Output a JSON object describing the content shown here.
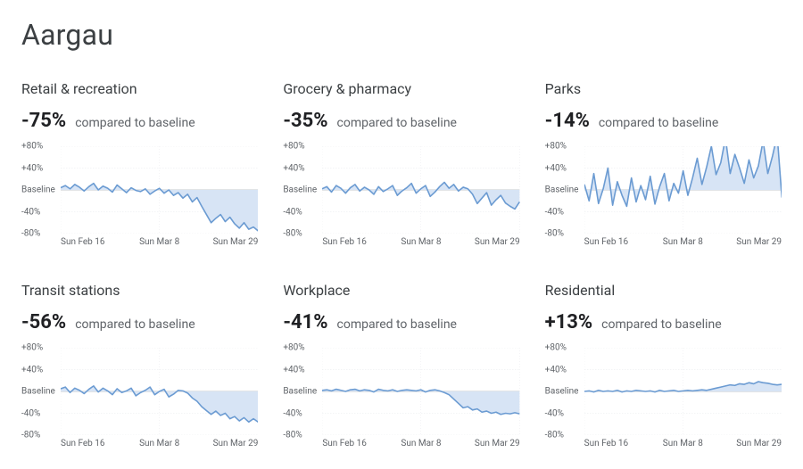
{
  "region": "Aargau",
  "baseline_label": "Baseline",
  "compared_label": "compared to baseline",
  "chart_style": {
    "line_color": "#6b9bd2",
    "fill_color": "#d7e4f5",
    "baseline_color": "#b0b6bc",
    "grid_color": "#e8eaed",
    "ylim": [
      -80,
      80
    ],
    "ytick_step": 40,
    "ytick_labels_top": [
      "+80%",
      "+40%"
    ],
    "ytick_labels_bottom": [
      "-40%",
      "-80%"
    ],
    "line_width": 1.6,
    "title_fontsize": 16,
    "value_fontsize": 22,
    "label_fontsize": 10,
    "background_color": "#ffffff"
  },
  "xaxis": {
    "range_days": 43,
    "ticks": [
      {
        "label": "Sun Feb 16",
        "t": 0
      },
      {
        "label": "Sun Mar 8",
        "t": 21
      },
      {
        "label": "Sun Mar 29",
        "t": 42
      }
    ]
  },
  "panels": [
    {
      "key": "retail",
      "title": "Retail & recreation",
      "value": "-75%",
      "series": [
        4,
        8,
        2,
        10,
        5,
        -2,
        6,
        12,
        0,
        7,
        3,
        -4,
        9,
        2,
        -5,
        4,
        -1,
        -3,
        2,
        -8,
        -2,
        3,
        -6,
        0,
        -10,
        -5,
        -15,
        -8,
        -22,
        -14,
        -30,
        -45,
        -60,
        -52,
        -45,
        -58,
        -50,
        -62,
        -70,
        -60,
        -72,
        -68,
        -75
      ]
    },
    {
      "key": "grocery",
      "title": "Grocery & pharmacy",
      "value": "-35%",
      "series": [
        2,
        6,
        -4,
        8,
        3,
        -6,
        4,
        10,
        -2,
        5,
        0,
        -8,
        6,
        -3,
        2,
        8,
        -10,
        -2,
        4,
        12,
        -6,
        2,
        8,
        -12,
        -4,
        6,
        14,
        3,
        10,
        -2,
        5,
        2,
        -8,
        -25,
        -15,
        -5,
        -28,
        -18,
        -10,
        -24,
        -30,
        -35,
        -22
      ]
    },
    {
      "key": "parks",
      "title": "Parks",
      "value": "-14%",
      "series": [
        10,
        -20,
        30,
        -25,
        2,
        40,
        -28,
        15,
        -10,
        -30,
        22,
        -22,
        8,
        -18,
        25,
        -26,
        6,
        30,
        -20,
        12,
        -6,
        35,
        -10,
        22,
        58,
        10,
        42,
        80,
        28,
        50,
        95,
        30,
        65,
        40,
        12,
        55,
        22,
        44,
        90,
        30,
        62,
        100,
        -14
      ]
    },
    {
      "key": "transit",
      "title": "Transit stations",
      "value": "-56%",
      "series": [
        5,
        8,
        -2,
        6,
        2,
        -4,
        4,
        10,
        -1,
        6,
        1,
        -6,
        5,
        -2,
        1,
        6,
        -8,
        -2,
        2,
        8,
        -6,
        0,
        4,
        -10,
        -5,
        2,
        1,
        -3,
        -12,
        -18,
        -28,
        -35,
        -42,
        -36,
        -44,
        -40,
        -50,
        -46,
        -54,
        -48,
        -56,
        -50,
        -56
      ]
    },
    {
      "key": "workplace",
      "title": "Workplace",
      "value": "-41%",
      "series": [
        2,
        3,
        1,
        4,
        2,
        0,
        3,
        4,
        1,
        3,
        2,
        -1,
        4,
        2,
        1,
        3,
        0,
        2,
        3,
        2,
        1,
        3,
        -1,
        2,
        3,
        1,
        -2,
        -6,
        -14,
        -22,
        -30,
        -28,
        -34,
        -32,
        -38,
        -36,
        -40,
        -38,
        -42,
        -40,
        -41,
        -39,
        -41
      ]
    },
    {
      "key": "residential",
      "title": "Residential",
      "value": "+13%",
      "series": [
        0,
        1,
        -1,
        2,
        0,
        1,
        0,
        2,
        -1,
        1,
        0,
        2,
        1,
        0,
        1,
        -1,
        2,
        0,
        1,
        2,
        0,
        1,
        2,
        1,
        2,
        3,
        2,
        4,
        6,
        8,
        10,
        12,
        11,
        14,
        13,
        16,
        14,
        18,
        16,
        15,
        13,
        12,
        13
      ]
    }
  ]
}
